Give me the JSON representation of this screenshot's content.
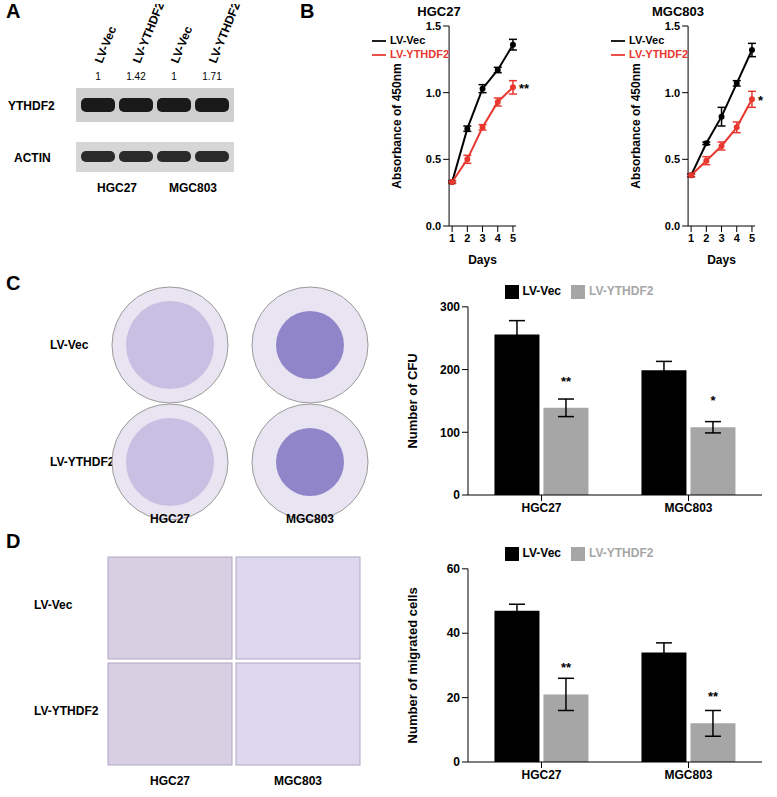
{
  "panel_labels": [
    "A",
    "B",
    "C",
    "D"
  ],
  "blot": {
    "lanes": [
      "LV-Vec",
      "LV-YTHDF2",
      "LV-Vec",
      "LV-YTHDF2"
    ],
    "quantification": [
      1,
      1.42,
      1,
      1.71
    ],
    "bands": [
      "YTHDF2",
      "ACTIN"
    ],
    "cell_lines": [
      "HGC27",
      "MGC803"
    ]
  },
  "colony_images": {
    "rows": [
      "LV-Vec",
      "LV-YTHDF2"
    ],
    "columns": [
      "HGC27",
      "MGC803"
    ]
  },
  "migration_images": {
    "rows": [
      "LV-Vec",
      "LV-YTHDF2"
    ],
    "columns": [
      "HGC27",
      "MGC803"
    ]
  },
  "chart_data": [
    {
      "type": "line",
      "title": "HGC27",
      "xlabel": "Days",
      "ylabel": "Absorbance of 450nm",
      "x": [
        1,
        2,
        3,
        4,
        5
      ],
      "xlim": [
        0.8,
        5.2
      ],
      "xticks": [
        1,
        2,
        3,
        4,
        5
      ],
      "ylim": [
        0,
        1.5
      ],
      "yticks": [
        {
          "value": 0,
          "label": "0.0"
        },
        {
          "value": 0.5,
          "label": "0.5"
        },
        {
          "value": 1,
          "label": "1.0"
        },
        {
          "value": 1.5,
          "label": "1.5"
        }
      ],
      "legend": "upper left",
      "series": [
        {
          "name": "LV-Vec",
          "color": "#000000",
          "values": [
            0.33,
            0.73,
            1.03,
            1.17,
            1.36
          ],
          "errors": [
            0.01,
            0.02,
            0.03,
            0.02,
            0.04
          ]
        },
        {
          "name": "LV-YTHDF2",
          "color": "#e8382f",
          "values": [
            0.33,
            0.5,
            0.74,
            0.93,
            1.04
          ],
          "errors": [
            0.01,
            0.03,
            0.02,
            0.03,
            0.05
          ],
          "significance": [
            null,
            null,
            null,
            null,
            "**"
          ]
        }
      ]
    },
    {
      "type": "line",
      "title": "MGC803",
      "xlabel": "Days",
      "ylabel": "Absorbance of 450nm",
      "x": [
        1,
        2,
        3,
        4,
        5
      ],
      "xlim": [
        0.8,
        5.2
      ],
      "xticks": [
        1,
        2,
        3,
        4,
        5
      ],
      "ylim": [
        0,
        1.5
      ],
      "yticks": [
        {
          "value": 0,
          "label": "0.0"
        },
        {
          "value": 0.5,
          "label": "0.5"
        },
        {
          "value": 1,
          "label": "1.0"
        },
        {
          "value": 1.5,
          "label": "1.5"
        }
      ],
      "legend": "upper left",
      "series": [
        {
          "name": "LV-Vec",
          "color": "#000000",
          "values": [
            0.38,
            0.62,
            0.82,
            1.07,
            1.32
          ],
          "errors": [
            0.01,
            0.01,
            0.07,
            0.02,
            0.05
          ]
        },
        {
          "name": "LV-YTHDF2",
          "color": "#e8382f",
          "values": [
            0.38,
            0.49,
            0.6,
            0.74,
            0.95
          ],
          "errors": [
            0.01,
            0.03,
            0.03,
            0.04,
            0.06
          ],
          "significance": [
            null,
            null,
            null,
            null,
            "*"
          ]
        }
      ]
    },
    {
      "type": "bar",
      "categories": [
        "HGC27",
        "MGC803"
      ],
      "ylabel": "Number of CFU",
      "ylim": [
        0,
        300
      ],
      "yticks": [
        0,
        100,
        200,
        300
      ],
      "legend": "top",
      "series": [
        {
          "name": "LV-Vec",
          "color": "#000000",
          "values": [
            256,
            199
          ],
          "errors": [
            22,
            14
          ]
        },
        {
          "name": "LV-YTHDF2",
          "color": "#a6a6a6",
          "values": [
            139,
            108
          ],
          "errors": [
            14,
            9
          ],
          "significance": [
            "**",
            "*"
          ]
        }
      ]
    },
    {
      "type": "bar",
      "categories": [
        "HGC27",
        "MGC803"
      ],
      "ylabel": "Number of migrated cells",
      "ylim": [
        0,
        60
      ],
      "yticks": [
        0,
        20,
        40,
        60
      ],
      "legend": "top",
      "series": [
        {
          "name": "LV-Vec",
          "color": "#000000",
          "values": [
            47,
            34
          ],
          "errors": [
            2,
            3
          ]
        },
        {
          "name": "LV-YTHDF2",
          "color": "#a6a6a6",
          "values": [
            21,
            12
          ],
          "errors": [
            5,
            4
          ],
          "significance": [
            "**",
            "**"
          ]
        }
      ]
    }
  ]
}
